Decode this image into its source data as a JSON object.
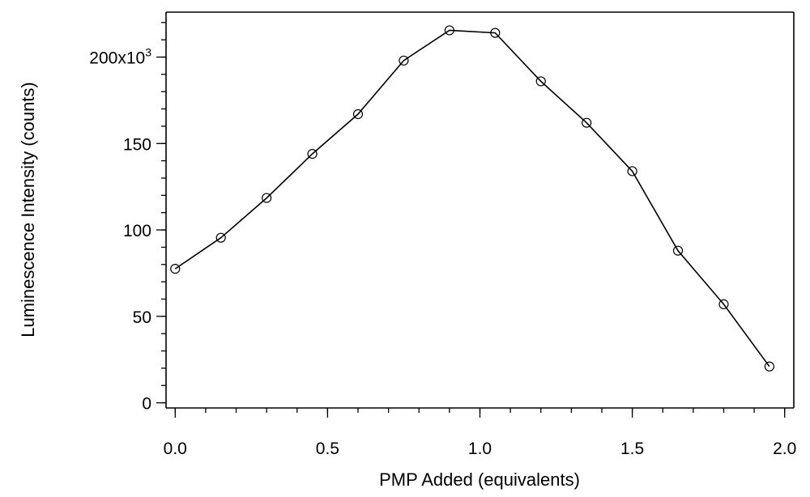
{
  "chart_data": {
    "type": "line",
    "title": "",
    "xlabel": "PMP Added (equivalents)",
    "ylabel": "Luminescence Intensity (counts)",
    "xlim": [
      -0.03,
      2.03
    ],
    "ylim": [
      -3000,
      226000
    ],
    "x_ticks": [
      {
        "value": 0.0,
        "label": "0.0"
      },
      {
        "value": 0.5,
        "label": "0.5"
      },
      {
        "value": 1.0,
        "label": "1.0"
      },
      {
        "value": 1.5,
        "label": "1.5"
      },
      {
        "value": 2.0,
        "label": "2.0"
      }
    ],
    "x_minor_step": 0.1,
    "y_ticks": [
      {
        "value": 0,
        "label": "0"
      },
      {
        "value": 50000,
        "label": "50"
      },
      {
        "value": 100000,
        "label": "100"
      },
      {
        "value": 150000,
        "label": "150"
      },
      {
        "value": 200000,
        "label": "200x10",
        "sup": "3"
      }
    ],
    "y_minor_step": 10000,
    "series": [
      {
        "x": [
          0.0,
          0.15,
          0.3,
          0.45,
          0.6,
          0.75,
          0.9,
          1.05,
          1.2,
          1.35,
          1.5,
          1.65,
          1.8,
          1.95
        ],
        "y": [
          77500,
          95500,
          118500,
          144000,
          167000,
          198000,
          215500,
          214000,
          186000,
          162000,
          134000,
          88000,
          57000,
          21000
        ],
        "marker": "open-circle",
        "color": "#000000"
      }
    ],
    "grid": false
  }
}
